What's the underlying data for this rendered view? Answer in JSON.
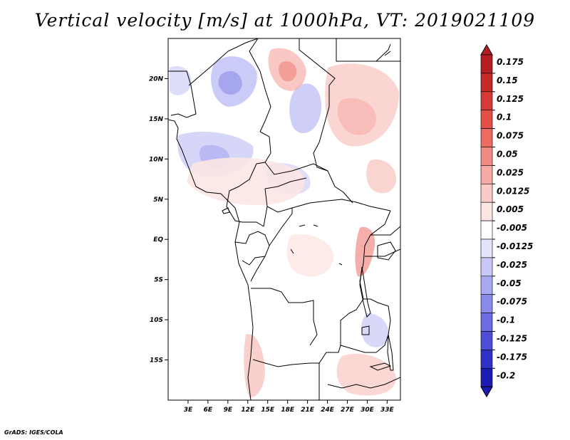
{
  "title": "Vertical velocity [m/s] at 1000hPa, VT: 2019021109",
  "credit": "GrADS: IGES/COLA",
  "map": {
    "lon_range": [
      0,
      35
    ],
    "lat_range": [
      -20,
      25
    ],
    "x_ticks": [
      {
        "value": 3,
        "label": "3E"
      },
      {
        "value": 6,
        "label": "6E"
      },
      {
        "value": 9,
        "label": "9E"
      },
      {
        "value": 12,
        "label": "12E"
      },
      {
        "value": 15,
        "label": "15E"
      },
      {
        "value": 18,
        "label": "18E"
      },
      {
        "value": 21,
        "label": "21E"
      },
      {
        "value": 24,
        "label": "24E"
      },
      {
        "value": 27,
        "label": "27E"
      },
      {
        "value": 30,
        "label": "30E"
      },
      {
        "value": 33,
        "label": "33E"
      }
    ],
    "y_ticks": [
      {
        "value": 20,
        "label": "20N"
      },
      {
        "value": 15,
        "label": "15N"
      },
      {
        "value": 10,
        "label": "10N"
      },
      {
        "value": 5,
        "label": "5N"
      },
      {
        "value": 0,
        "label": "EQ"
      },
      {
        "value": -5,
        "label": "5S"
      },
      {
        "value": -10,
        "label": "10S"
      },
      {
        "value": -15,
        "label": "15S"
      }
    ]
  },
  "colorbar": {
    "levels": [
      {
        "label": "0.175",
        "color": "#b41e23"
      },
      {
        "label": "0.15",
        "color": "#c42a2a"
      },
      {
        "label": "0.125",
        "color": "#d63a36"
      },
      {
        "label": "0.1",
        "color": "#e34f47"
      },
      {
        "label": "0.075",
        "color": "#ec6b62"
      },
      {
        "label": "0.05",
        "color": "#f18a82"
      },
      {
        "label": "0.025",
        "color": "#f6aaa4"
      },
      {
        "label": "0.0125",
        "color": "#f9cac6"
      },
      {
        "label": "0.005",
        "color": "#fce6e4"
      },
      {
        "label": "-0.005",
        "color": "#ffffff"
      },
      {
        "label": "-0.0125",
        "color": "#e4e4fb"
      },
      {
        "label": "-0.025",
        "color": "#c8c8f6"
      },
      {
        "label": "-0.05",
        "color": "#a9a9f1"
      },
      {
        "label": "-0.075",
        "color": "#8a8aea"
      },
      {
        "label": "-0.1",
        "color": "#6b6be2"
      },
      {
        "label": "-0.125",
        "color": "#4d4dd8"
      },
      {
        "label": "-0.175",
        "color": "#3131c8"
      },
      {
        "label": "-0.2",
        "color": "#1c1cb2"
      }
    ],
    "top_cap_color": "#b41e23",
    "bottom_cap_color": "#1c1cb2"
  }
}
